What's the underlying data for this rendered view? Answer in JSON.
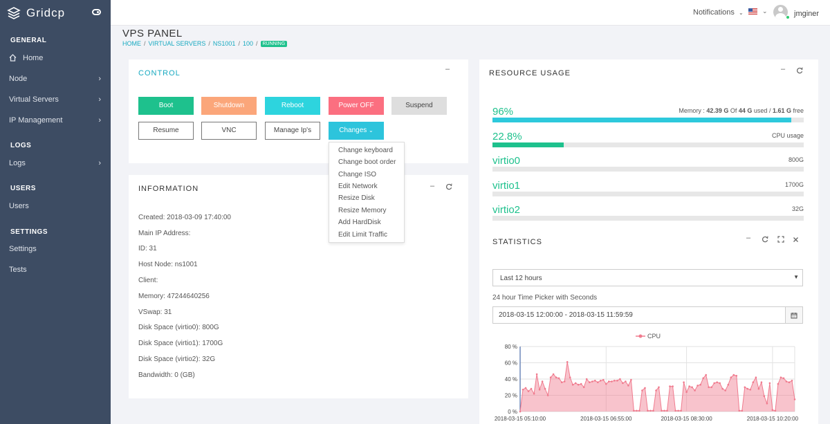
{
  "app": {
    "name": "Gridcp"
  },
  "sidebar": {
    "sections": [
      {
        "title": "GENERAL",
        "items": [
          {
            "label": "Home",
            "icon": "home-icon"
          },
          {
            "label": "Node",
            "chevron": true
          },
          {
            "label": "Virtual Servers",
            "chevron": true
          },
          {
            "label": "IP Management",
            "chevron": true
          }
        ]
      },
      {
        "title": "LOGS",
        "items": [
          {
            "label": "Logs",
            "chevron": true
          }
        ]
      },
      {
        "title": "USERS",
        "items": [
          {
            "label": "Users"
          }
        ]
      },
      {
        "title": "SETTINGS",
        "items": [
          {
            "label": "Settings"
          },
          {
            "label": "Tests"
          }
        ]
      }
    ]
  },
  "topbar": {
    "notifications": "Notifications",
    "username": "jmginer"
  },
  "page": {
    "title": "VPS PANEL",
    "breadcrumb": [
      "HOME",
      "VIRTUAL SERVERS",
      "NS1001",
      "100"
    ],
    "status": "RUNNING"
  },
  "control": {
    "title": "CONTROL",
    "row1": [
      {
        "label": "Boot",
        "color": "#1ec18d"
      },
      {
        "label": "Shutdown",
        "color": "#fba67a"
      },
      {
        "label": "Reboot",
        "color": "#2dd4de"
      },
      {
        "label": "Power OFF",
        "color": "#fb6f80"
      },
      {
        "label": "Suspend",
        "color": "#dedede"
      }
    ],
    "row2": [
      "Resume",
      "VNC",
      "Manage Ip's"
    ],
    "changes_label": "Changes",
    "changes_color": "#2dc4dc",
    "menu": [
      "Change keyboard",
      "Change boot order",
      "Change ISO",
      "Edit Network",
      "Resize Disk",
      "Resize Memory",
      "Add HardDisk",
      "Edit Limit Traffic"
    ]
  },
  "information": {
    "title": "INFORMATION",
    "rows": [
      "Created: 2018-03-09 17:40:00",
      "Main IP Address:",
      "ID: 31",
      "Host Node: ns1001",
      "Client:",
      "Memory: 47244640256",
      "VSwap: 31",
      "Disk Space (virtio0): 800G",
      "Disk Space (virtio1): 1700G",
      "Disk Space (virtio2): 32G",
      "Bandwidth: 0 (GB)"
    ]
  },
  "resource": {
    "title": "RESOURCE USAGE",
    "memory": {
      "percent": "96%",
      "fraction": 0.96,
      "prefix": "Memory : ",
      "used": "42.39 G",
      "of_text": " Of ",
      "total": "44 G",
      "used_text": " used / ",
      "free": "1.61 G",
      "free_text": " free",
      "color": "#2dc9dc"
    },
    "cpu": {
      "percent": "22.8%",
      "fraction": 0.228,
      "label": "CPU usage",
      "color": "#1ec18d"
    },
    "disks": [
      {
        "name": "virtio0",
        "size": "800G"
      },
      {
        "name": "virtio1",
        "size": "1700G"
      },
      {
        "name": "virtio2",
        "size": "32G"
      }
    ]
  },
  "statistics": {
    "title": "STATISTICS",
    "select": "Last 12 hours",
    "picker_label": "24 hour Time Picker with Seconds",
    "range": "2018-03-15 12:00:00 - 2018-03-15 11:59:59"
  },
  "chart_data": {
    "type": "area",
    "legend": "CPU",
    "color": "#f07b8e",
    "ylim": [
      0,
      80
    ],
    "yticks": [
      "80 %",
      "60 %",
      "40 %",
      "20 %",
      "0 %"
    ],
    "xticks": [
      "2018-03-15 05:10:00",
      "2018-03-15 06:55:00",
      "2018-03-15 08:30:00",
      "2018-03-15 10:20:00"
    ],
    "values": [
      0,
      27,
      29,
      25,
      28,
      22,
      46,
      27,
      37,
      28,
      20,
      42,
      46,
      42,
      41,
      36,
      37,
      61,
      42,
      33,
      35,
      33,
      34,
      30,
      40,
      36,
      37,
      38,
      36,
      38,
      39,
      34,
      37,
      37,
      38,
      38,
      40,
      35,
      37,
      32,
      39,
      1,
      1,
      1,
      26,
      29,
      1,
      1,
      1,
      26,
      30,
      1,
      1,
      1,
      31,
      31,
      1,
      1,
      1,
      36,
      24,
      31,
      30,
      26,
      32,
      33,
      41,
      45,
      30,
      30,
      35,
      36,
      35,
      28,
      26,
      33,
      42,
      45,
      44,
      1,
      1,
      30,
      28,
      27,
      36,
      42,
      28,
      36,
      19,
      10,
      35,
      2,
      1,
      34,
      42,
      41,
      37,
      36,
      38,
      15
    ],
    "x_count": 100
  }
}
